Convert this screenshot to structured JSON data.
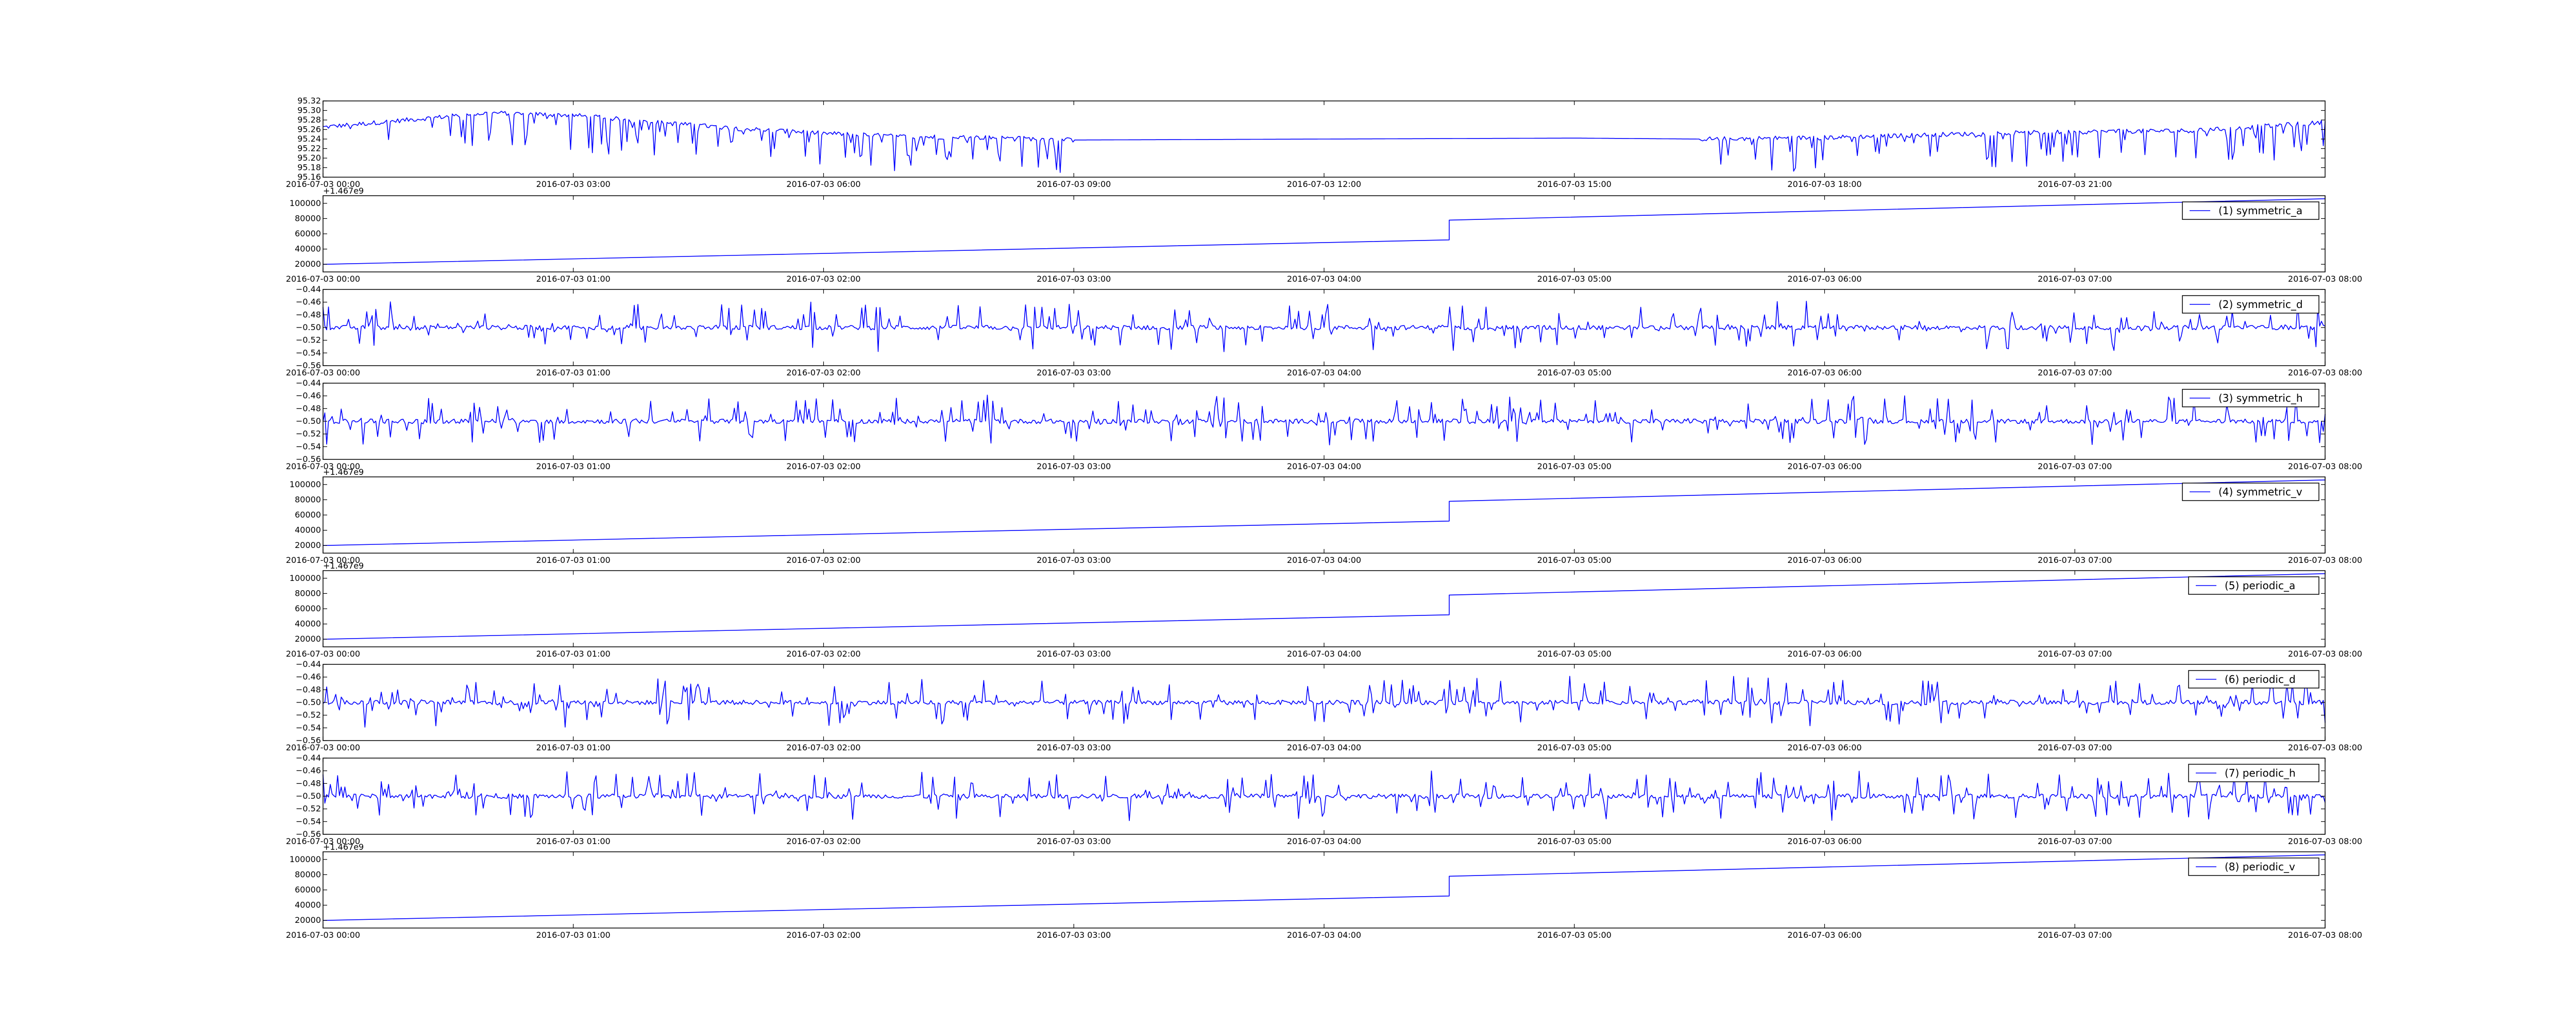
{
  "chart_data": [
    {
      "type": "line",
      "title": "",
      "xlabel": "",
      "ylabel": "",
      "xlim": [
        "2016-07-03 00:00",
        "2016-07-04 00:00"
      ],
      "ylim": [
        95.16,
        95.32
      ],
      "xticks": [
        "2016-07-03 00:00",
        "2016-07-03 03:00",
        "2016-07-03 06:00",
        "2016-07-03 09:00",
        "2016-07-03 12:00",
        "2016-07-03 15:00",
        "2016-07-03 18:00",
        "2016-07-03 21:00"
      ],
      "yticks": [
        "95.16",
        "95.18",
        "95.20",
        "95.22",
        "95.24",
        "95.26",
        "95.28",
        "95.30",
        "95.32"
      ],
      "noise": "spiky-down",
      "legend": null,
      "series": [
        {
          "name": "",
          "x": [
            "2016-07-03 00:00",
            "2016-07-03 01:00",
            "2016-07-03 02:00",
            "2016-07-03 03:00",
            "2016-07-03 04:00",
            "2016-07-03 05:00",
            "2016-07-03 06:00",
            "2016-07-03 07:00",
            "2016-07-03 08:00",
            "2016-07-03 09:00",
            "2016-07-03 12:00",
            "2016-07-03 15:00",
            "2016-07-03 16:30",
            "2016-07-03 18:00",
            "2016-07-03 19:30",
            "2016-07-03 21:00",
            "2016-07-03 22:30",
            "2016-07-04 00:00"
          ],
          "values": [
            95.265,
            95.28,
            95.295,
            95.29,
            95.275,
            95.262,
            95.252,
            95.245,
            95.243,
            95.238,
            95.24,
            95.242,
            95.24,
            95.243,
            95.25,
            95.255,
            95.258,
            95.275
          ]
        }
      ],
      "flat_segment": [
        "2016-07-03 09:00",
        "2016-07-03 16:30"
      ]
    },
    {
      "type": "line",
      "offset_label": "+1.467e9",
      "xlim": [
        "2016-07-03 00:00",
        "2016-07-03 08:00"
      ],
      "ylim": [
        10000,
        110000
      ],
      "xticks": [
        "2016-07-03 00:00",
        "2016-07-03 01:00",
        "2016-07-03 02:00",
        "2016-07-03 03:00",
        "2016-07-03 04:00",
        "2016-07-03 05:00",
        "2016-07-03 06:00",
        "2016-07-03 07:00",
        "2016-07-03 08:00"
      ],
      "yticks": [
        "20000",
        "40000",
        "60000",
        "80000",
        "100000"
      ],
      "noise": "none",
      "legend": "(1) symmetric_a",
      "series": [
        {
          "name": "(1) symmetric_a",
          "x": [
            "2016-07-03 00:00",
            "2016-07-03 04:30",
            "2016-07-03 04:30",
            "2016-07-03 08:00"
          ],
          "values": [
            20000,
            52000,
            78000,
            106000
          ]
        }
      ]
    },
    {
      "type": "line",
      "offset_label": "",
      "xlim": [
        "2016-07-03 00:00",
        "2016-07-03 08:00"
      ],
      "ylim": [
        -0.56,
        -0.44
      ],
      "xticks": [
        "2016-07-03 00:00",
        "2016-07-03 01:00",
        "2016-07-03 02:00",
        "2016-07-03 03:00",
        "2016-07-03 04:00",
        "2016-07-03 05:00",
        "2016-07-03 06:00",
        "2016-07-03 07:00",
        "2016-07-03 08:00"
      ],
      "yticks": [
        "−0.56",
        "−0.54",
        "−0.52",
        "−0.50",
        "−0.48",
        "−0.46",
        "−0.44"
      ],
      "noise": "spiky",
      "legend": "(2) symmetric_d",
      "series": [
        {
          "name": "(2) symmetric_d",
          "x": [
            "2016-07-03 00:00",
            "2016-07-03 08:00"
          ],
          "values": [
            -0.5,
            -0.5
          ]
        }
      ]
    },
    {
      "type": "line",
      "offset_label": "",
      "xlim": [
        "2016-07-03 00:00",
        "2016-07-03 08:00"
      ],
      "ylim": [
        -0.56,
        -0.44
      ],
      "xticks": [
        "2016-07-03 00:00",
        "2016-07-03 01:00",
        "2016-07-03 02:00",
        "2016-07-03 03:00",
        "2016-07-03 04:00",
        "2016-07-03 05:00",
        "2016-07-03 06:00",
        "2016-07-03 07:00",
        "2016-07-03 08:00"
      ],
      "yticks": [
        "−0.56",
        "−0.54",
        "−0.52",
        "−0.50",
        "−0.48",
        "−0.46",
        "−0.44"
      ],
      "noise": "spiky",
      "legend": "(3) symmetric_h",
      "series": [
        {
          "name": "(3) symmetric_h",
          "x": [
            "2016-07-03 00:00",
            "2016-07-03 08:00"
          ],
          "values": [
            -0.5,
            -0.5
          ]
        }
      ]
    },
    {
      "type": "line",
      "offset_label": "+1.467e9",
      "xlim": [
        "2016-07-03 00:00",
        "2016-07-03 08:00"
      ],
      "ylim": [
        10000,
        110000
      ],
      "xticks": [
        "2016-07-03 00:00",
        "2016-07-03 01:00",
        "2016-07-03 02:00",
        "2016-07-03 03:00",
        "2016-07-03 04:00",
        "2016-07-03 05:00",
        "2016-07-03 06:00",
        "2016-07-03 07:00",
        "2016-07-03 08:00"
      ],
      "yticks": [
        "20000",
        "40000",
        "60000",
        "80000",
        "100000"
      ],
      "noise": "none",
      "legend": "(4) symmetric_v",
      "series": [
        {
          "name": "(4) symmetric_v",
          "x": [
            "2016-07-03 00:00",
            "2016-07-03 04:30",
            "2016-07-03 04:30",
            "2016-07-03 08:00"
          ],
          "values": [
            20000,
            52000,
            78000,
            106000
          ]
        }
      ]
    },
    {
      "type": "line",
      "offset_label": "+1.467e9",
      "xlim": [
        "2016-07-03 00:00",
        "2016-07-03 08:00"
      ],
      "ylim": [
        10000,
        110000
      ],
      "xticks": [
        "2016-07-03 00:00",
        "2016-07-03 01:00",
        "2016-07-03 02:00",
        "2016-07-03 03:00",
        "2016-07-03 04:00",
        "2016-07-03 05:00",
        "2016-07-03 06:00",
        "2016-07-03 07:00",
        "2016-07-03 08:00"
      ],
      "yticks": [
        "20000",
        "40000",
        "60000",
        "80000",
        "100000"
      ],
      "noise": "none",
      "legend": "(5) periodic_a",
      "series": [
        {
          "name": "(5) periodic_a",
          "x": [
            "2016-07-03 00:00",
            "2016-07-03 04:30",
            "2016-07-03 04:30",
            "2016-07-03 08:00"
          ],
          "values": [
            20000,
            52000,
            78000,
            106000
          ]
        }
      ]
    },
    {
      "type": "line",
      "offset_label": "",
      "xlim": [
        "2016-07-03 00:00",
        "2016-07-03 08:00"
      ],
      "ylim": [
        -0.56,
        -0.44
      ],
      "xticks": [
        "2016-07-03 00:00",
        "2016-07-03 01:00",
        "2016-07-03 02:00",
        "2016-07-03 03:00",
        "2016-07-03 04:00",
        "2016-07-03 05:00",
        "2016-07-03 06:00",
        "2016-07-03 07:00",
        "2016-07-03 08:00"
      ],
      "yticks": [
        "−0.56",
        "−0.54",
        "−0.52",
        "−0.50",
        "−0.48",
        "−0.46",
        "−0.44"
      ],
      "noise": "spiky",
      "legend": "(6) periodic_d",
      "series": [
        {
          "name": "(6) periodic_d",
          "x": [
            "2016-07-03 00:00",
            "2016-07-03 08:00"
          ],
          "values": [
            -0.5,
            -0.5
          ]
        }
      ]
    },
    {
      "type": "line",
      "offset_label": "",
      "xlim": [
        "2016-07-03 00:00",
        "2016-07-03 08:00"
      ],
      "ylim": [
        -0.56,
        -0.44
      ],
      "xticks": [
        "2016-07-03 00:00",
        "2016-07-03 01:00",
        "2016-07-03 02:00",
        "2016-07-03 03:00",
        "2016-07-03 04:00",
        "2016-07-03 05:00",
        "2016-07-03 06:00",
        "2016-07-03 07:00",
        "2016-07-03 08:00"
      ],
      "yticks": [
        "−0.56",
        "−0.54",
        "−0.52",
        "−0.50",
        "−0.48",
        "−0.46",
        "−0.44"
      ],
      "noise": "spiky",
      "legend": "(7) periodic_h",
      "series": [
        {
          "name": "(7) periodic_h",
          "x": [
            "2016-07-03 00:00",
            "2016-07-03 08:00"
          ],
          "values": [
            -0.5,
            -0.5
          ]
        }
      ]
    },
    {
      "type": "line",
      "offset_label": "+1.467e9",
      "xlim": [
        "2016-07-03 00:00",
        "2016-07-03 08:00"
      ],
      "ylim": [
        10000,
        110000
      ],
      "xticks": [
        "2016-07-03 00:00",
        "2016-07-03 01:00",
        "2016-07-03 02:00",
        "2016-07-03 03:00",
        "2016-07-03 04:00",
        "2016-07-03 05:00",
        "2016-07-03 06:00",
        "2016-07-03 07:00",
        "2016-07-03 08:00"
      ],
      "yticks": [
        "20000",
        "40000",
        "60000",
        "80000",
        "100000"
      ],
      "noise": "none",
      "legend": "(8) periodic_v",
      "series": [
        {
          "name": "(8) periodic_v",
          "x": [
            "2016-07-03 00:00",
            "2016-07-03 04:30",
            "2016-07-03 04:30",
            "2016-07-03 08:00"
          ],
          "values": [
            20000,
            52000,
            78000,
            106000
          ]
        }
      ]
    }
  ],
  "colors": {
    "series": "#0000ff",
    "axes": "#000000",
    "background": "#ffffff"
  }
}
